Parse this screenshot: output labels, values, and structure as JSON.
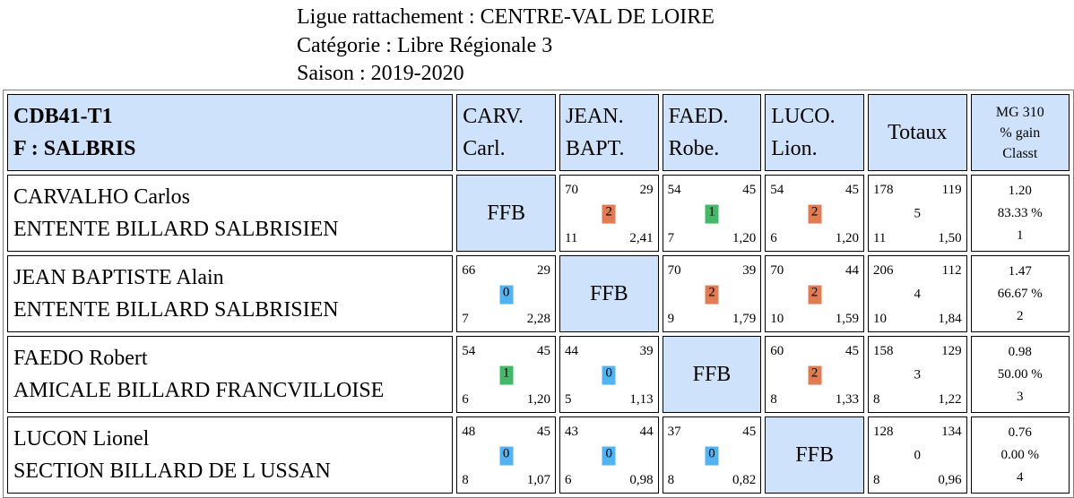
{
  "header": {
    "ligue": "Ligue rattachement : CENTRE-VAL DE LOIRE",
    "categorie": "Catégorie : Libre Régionale 3",
    "saison": "Saison : 2019-2020"
  },
  "table_header": {
    "team_line1": "CDB41-T1",
    "team_line2": "F : SALBRIS",
    "players": [
      {
        "l1": "CARV.",
        "l2": "Carl."
      },
      {
        "l1": "JEAN.",
        "l2": "BAPT."
      },
      {
        "l1": "FAED.",
        "l2": "Robe."
      },
      {
        "l1": "LUCO.",
        "l2": "Lion."
      }
    ],
    "totaux": "Totaux",
    "mg_l1": "MG 310",
    "mg_l2": "% gain",
    "mg_l3": "Classt"
  },
  "ffb_label": "FFB",
  "rows": [
    {
      "name": "CARVALHO Carlos",
      "club": "ENTENTE BILLARD SALBRISIEN",
      "cells": [
        null,
        {
          "tl": "70",
          "tr": "29",
          "badge": "2",
          "bl": "11",
          "br": "2,41"
        },
        {
          "tl": "54",
          "tr": "45",
          "badge": "1",
          "bl": "7",
          "br": "1,20"
        },
        {
          "tl": "54",
          "tr": "45",
          "badge": "2",
          "bl": "6",
          "br": "1,20"
        }
      ],
      "totals": {
        "tl": "178",
        "tr": "119",
        "mid": "5",
        "bl": "11",
        "br": "1,50"
      },
      "mg": {
        "moyenne": "1.20",
        "gain": "83.33 %",
        "classt": "1"
      }
    },
    {
      "name": "JEAN BAPTISTE Alain",
      "club": "ENTENTE BILLARD SALBRISIEN",
      "cells": [
        {
          "tl": "66",
          "tr": "29",
          "badge": "0",
          "bl": "7",
          "br": "2,28"
        },
        null,
        {
          "tl": "70",
          "tr": "39",
          "badge": "2",
          "bl": "9",
          "br": "1,79"
        },
        {
          "tl": "70",
          "tr": "44",
          "badge": "2",
          "bl": "10",
          "br": "1,59"
        }
      ],
      "totals": {
        "tl": "206",
        "tr": "112",
        "mid": "4",
        "bl": "10",
        "br": "1,84"
      },
      "mg": {
        "moyenne": "1.47",
        "gain": "66.67 %",
        "classt": "2"
      }
    },
    {
      "name": "FAEDO Robert",
      "club": "AMICALE BILLARD FRANCVILLOISE",
      "cells": [
        {
          "tl": "54",
          "tr": "45",
          "badge": "1",
          "bl": "6",
          "br": "1,20"
        },
        {
          "tl": "44",
          "tr": "39",
          "badge": "0",
          "bl": "5",
          "br": "1,13"
        },
        null,
        {
          "tl": "60",
          "tr": "45",
          "badge": "2",
          "bl": "8",
          "br": "1,33"
        }
      ],
      "totals": {
        "tl": "158",
        "tr": "129",
        "mid": "3",
        "bl": "8",
        "br": "1,22"
      },
      "mg": {
        "moyenne": "0.98",
        "gain": "50.00 %",
        "classt": "3"
      }
    },
    {
      "name": "LUCON Lionel",
      "club": "SECTION BILLARD DE L USSAN",
      "cells": [
        {
          "tl": "48",
          "tr": "45",
          "badge": "0",
          "bl": "8",
          "br": "1,07"
        },
        {
          "tl": "43",
          "tr": "44",
          "badge": "0",
          "bl": "6",
          "br": "0,98"
        },
        {
          "tl": "37",
          "tr": "45",
          "badge": "0",
          "bl": "8",
          "br": "0,82"
        },
        null
      ],
      "totals": {
        "tl": "128",
        "tr": "134",
        "mid": "0",
        "bl": "8",
        "br": "0,96"
      },
      "mg": {
        "moyenne": "0.76",
        "gain": "0.00 %",
        "classt": "4"
      }
    }
  ],
  "colors": {
    "header_bg": "#cfe2fb",
    "badge_2": "#e07b53",
    "badge_1": "#42b868",
    "badge_0": "#52b3f2"
  }
}
